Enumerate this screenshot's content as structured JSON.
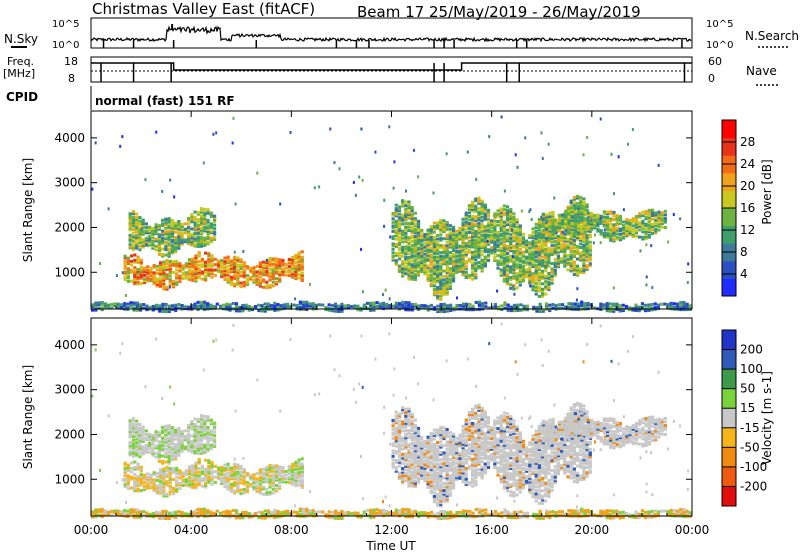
{
  "title": {
    "left": "Christmas Valley East (fitACF)",
    "right": "Beam 17 25/May/2019 - 26/May/2019"
  },
  "header": {
    "nsky_label": "N.Sky",
    "nsearch_label": "N.Search",
    "noise_ticks": [
      "10^5",
      "10^0"
    ],
    "freq_label_1": "Freq.",
    "freq_label_2": "[MHz]",
    "freq_ticks": [
      "18",
      "8"
    ],
    "nave_label": "Nave",
    "nave_ticks": [
      "60",
      "0"
    ],
    "cpid_label": "CPID",
    "cpid_text": "normal (fast) 151 RF"
  },
  "x_axis": {
    "label": "Time UT",
    "ticks": [
      "00:00",
      "04:00",
      "08:00",
      "12:00",
      "16:00",
      "20:00",
      "00:00"
    ]
  },
  "chart_data": [
    {
      "type": "heatmap",
      "panel": "power",
      "ylabel": "Slant Range [km]",
      "xlabel": "",
      "yticks": [
        1000,
        2000,
        3000,
        4000
      ],
      "ylim": [
        180,
        4600
      ],
      "xlim_hours": [
        0,
        24
      ],
      "colorbar": {
        "label": "Power [dB]",
        "ticks": [
          "4",
          "8",
          "12",
          "16",
          "20",
          "24",
          "28"
        ],
        "colors": [
          "#1f2bff",
          "#2b4fc0",
          "#3d7a9a",
          "#3f9f6a",
          "#6cb33f",
          "#c8c81e",
          "#f0a31a",
          "#f36a17",
          "#e8321a",
          "#ff0000"
        ]
      },
      "features": [
        {
          "name": "early-low",
          "t": [
            1.3,
            8.5
          ],
          "r": [
            750,
            1400
          ],
          "level": "high"
        },
        {
          "name": "early-mid",
          "t": [
            1.5,
            5.0
          ],
          "r": [
            1500,
            2350
          ],
          "level": "mid"
        },
        {
          "name": "evening-band",
          "t": [
            12.0,
            20.0
          ],
          "r": [
            700,
            2500
          ],
          "level": "mid"
        },
        {
          "name": "late-band",
          "t": [
            18.0,
            23.0
          ],
          "r": [
            1800,
            2450
          ],
          "level": "mid"
        },
        {
          "name": "ground-scatter",
          "t": [
            0,
            24
          ],
          "r": [
            180,
            350
          ],
          "level": "low"
        }
      ]
    },
    {
      "type": "heatmap",
      "panel": "velocity",
      "ylabel": "Slant Range [km]",
      "xlabel": "Time UT",
      "yticks": [
        1000,
        2000,
        3000,
        4000
      ],
      "ylim": [
        180,
        4600
      ],
      "xlim_hours": [
        0,
        24
      ],
      "colorbar": {
        "label": "Velocity [m s-1]",
        "ticks": [
          "200",
          "100",
          "50",
          "15",
          "-15",
          "-50",
          "-100",
          "-200"
        ],
        "colors": [
          "#2034c8",
          "#2e5bb8",
          "#3d9a4a",
          "#7ad33a",
          "#c8c8c8",
          "#f5b51b",
          "#f08a10",
          "#ee5a12",
          "#e30d0d"
        ]
      }
    }
  ],
  "colors": {
    "frame": "#000000",
    "ground_scatter": "#bebebe"
  }
}
